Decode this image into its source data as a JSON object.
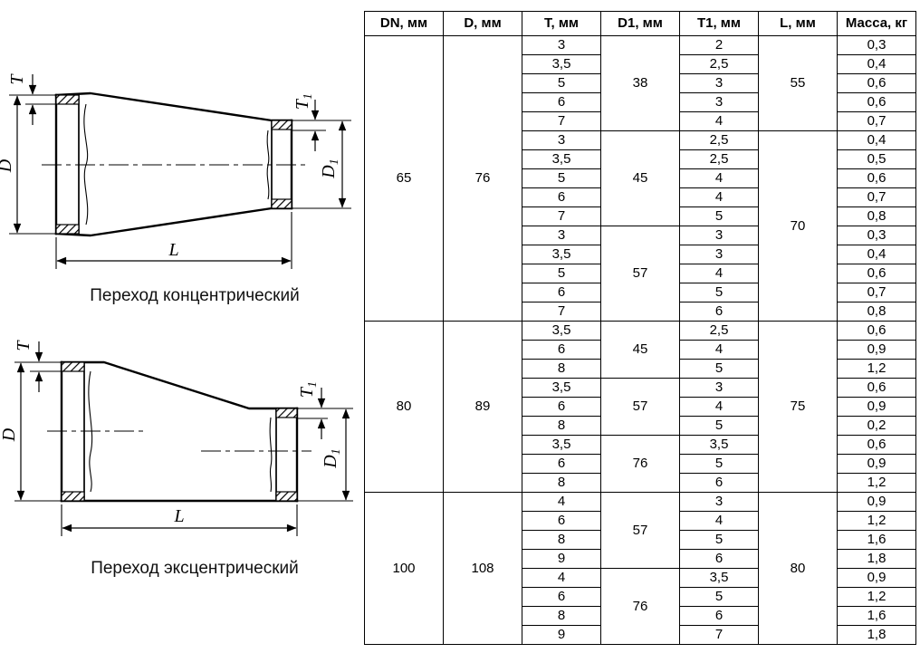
{
  "drawings": [
    {
      "caption": "Переход концентрический"
    },
    {
      "caption": "Переход эксцентрический"
    }
  ],
  "dim_labels": {
    "t": "T",
    "d": "D",
    "l": "L",
    "t1_base": "T",
    "t1_sub": "1",
    "d1_base": "D",
    "d1_sub": "1"
  },
  "table": {
    "headers": [
      "DN, мм",
      "D, мм",
      "T, мм",
      "D1, мм",
      "T1, мм",
      "L, мм",
      "Масса, кг"
    ],
    "groups": [
      {
        "dn": "65",
        "d": "76",
        "l_spans": [
          {
            "l": "55",
            "rows": 5
          },
          {
            "l": "70",
            "rows": 10
          }
        ],
        "subgroups": [
          {
            "d1": "38",
            "rows": [
              [
                "3",
                "2",
                "0,3"
              ],
              [
                "3,5",
                "2,5",
                "0,4"
              ],
              [
                "5",
                "3",
                "0,6"
              ],
              [
                "6",
                "3",
                "0,6"
              ],
              [
                "7",
                "4",
                "0,7"
              ]
            ]
          },
          {
            "d1": "45",
            "rows": [
              [
                "3",
                "2,5",
                "0,4"
              ],
              [
                "3,5",
                "2,5",
                "0,5"
              ],
              [
                "5",
                "4",
                "0,6"
              ],
              [
                "6",
                "4",
                "0,7"
              ],
              [
                "7",
                "5",
                "0,8"
              ]
            ]
          },
          {
            "d1": "57",
            "rows": [
              [
                "3",
                "3",
                "0,3"
              ],
              [
                "3,5",
                "3",
                "0,4"
              ],
              [
                "5",
                "4",
                "0,6"
              ],
              [
                "6",
                "5",
                "0,7"
              ],
              [
                "7",
                "6",
                "0,8"
              ]
            ]
          }
        ]
      },
      {
        "dn": "80",
        "d": "89",
        "l_spans": [
          {
            "l": "75",
            "rows": 9
          }
        ],
        "subgroups": [
          {
            "d1": "45",
            "rows": [
              [
                "3,5",
                "2,5",
                "0,6"
              ],
              [
                "6",
                "4",
                "0,9"
              ],
              [
                "8",
                "5",
                "1,2"
              ]
            ]
          },
          {
            "d1": "57",
            "rows": [
              [
                "3,5",
                "3",
                "0,6"
              ],
              [
                "6",
                "4",
                "0,9"
              ],
              [
                "8",
                "5",
                "0,2"
              ]
            ]
          },
          {
            "d1": "76",
            "rows": [
              [
                "3,5",
                "3,5",
                "0,6"
              ],
              [
                "6",
                "5",
                "0,9"
              ],
              [
                "8",
                "6",
                "1,2"
              ]
            ]
          }
        ]
      },
      {
        "dn": "100",
        "d": "108",
        "l_spans": [
          {
            "l": "80",
            "rows": 8
          }
        ],
        "subgroups": [
          {
            "d1": "57",
            "rows": [
              [
                "4",
                "3",
                "0,9"
              ],
              [
                "6",
                "4",
                "1,2"
              ],
              [
                "8",
                "5",
                "1,6"
              ],
              [
                "9",
                "6",
                "1,8"
              ]
            ]
          },
          {
            "d1": "76",
            "rows": [
              [
                "4",
                "3,5",
                "0,9"
              ],
              [
                "6",
                "5",
                "1,2"
              ],
              [
                "8",
                "6",
                "1,6"
              ],
              [
                "9",
                "7",
                "1,8"
              ]
            ]
          }
        ]
      }
    ]
  }
}
